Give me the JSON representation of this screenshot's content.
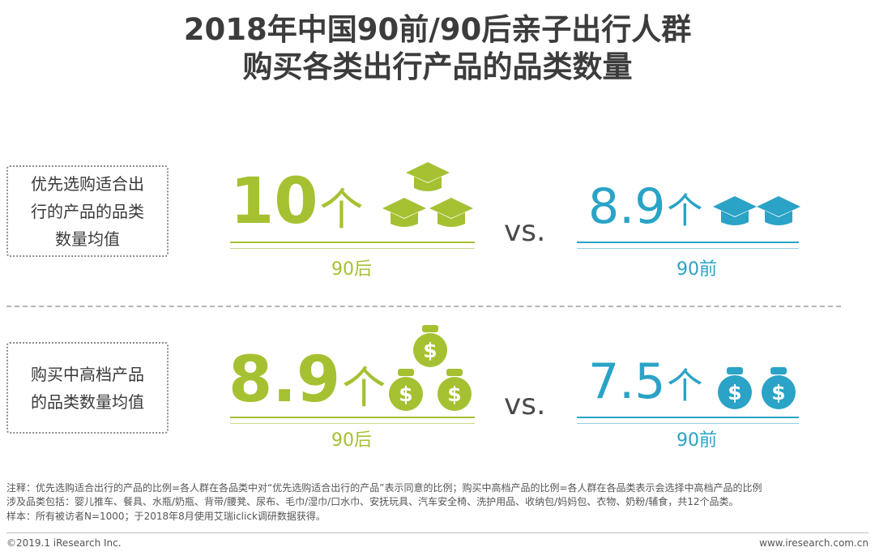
{
  "title": {
    "line1": "2018年中国90前/90后亲子出行人群",
    "line2": "购买各类出行产品的品类数量"
  },
  "chart_data": [
    {
      "type": "bar",
      "row_label": "优先选购适合出行的产品的品类数量均值",
      "categories": [
        "90后",
        "90前"
      ],
      "values": [
        10,
        8.9
      ],
      "unit": "个",
      "comparator": "vs.",
      "icon": "graduation-cap-icon"
    },
    {
      "type": "bar",
      "row_label": "购买中高档产品的品类数量均值",
      "categories": [
        "90后",
        "90前"
      ],
      "values": [
        8.9,
        7.5
      ],
      "unit": "个",
      "comparator": "vs.",
      "icon": "money-bag-icon"
    }
  ],
  "display": {
    "row1": {
      "label_lines": [
        "优先选购适合出",
        "行的产品的品类",
        "数量均值"
      ],
      "left_value": "10",
      "right_value": "8.9",
      "unit": "个",
      "left_group": "90后",
      "right_group": "90前",
      "vs": "vs."
    },
    "row2": {
      "label_lines": [
        "购买中高档产品",
        "的品类数量均值"
      ],
      "left_value": "8.9",
      "right_value": "7.5",
      "unit": "个",
      "left_group": "90后",
      "right_group": "90前",
      "vs": "vs."
    }
  },
  "notes": {
    "line1": "注释：优先选购适合出行的产品的比例=各人群在各品类中对“优先选购适合出行的产品”表示同意的比例；购买中高档产品的比例=各人群在各品类表示会选择中高档产品的比例",
    "line2": "涉及品类包括：婴儿推车、餐具、水瓶/奶瓶、背带/腰凳、尿布、毛巾/湿巾/口水巾、安抚玩具、汽车安全椅、洗护用品、收纳包/妈妈包、衣物、奶粉/辅食，共12个品类。",
    "line3": "样本：所有被访者N=1000；于2018年8月使用艾瑞iclick调研数据获得。"
  },
  "footer": {
    "copyright": "©2019.1 iResearch Inc.",
    "website": "www.iresearch.com.cn"
  },
  "colors": {
    "green": "#a5c132",
    "blue": "#2aa3c6",
    "title": "#3c3c3c"
  }
}
